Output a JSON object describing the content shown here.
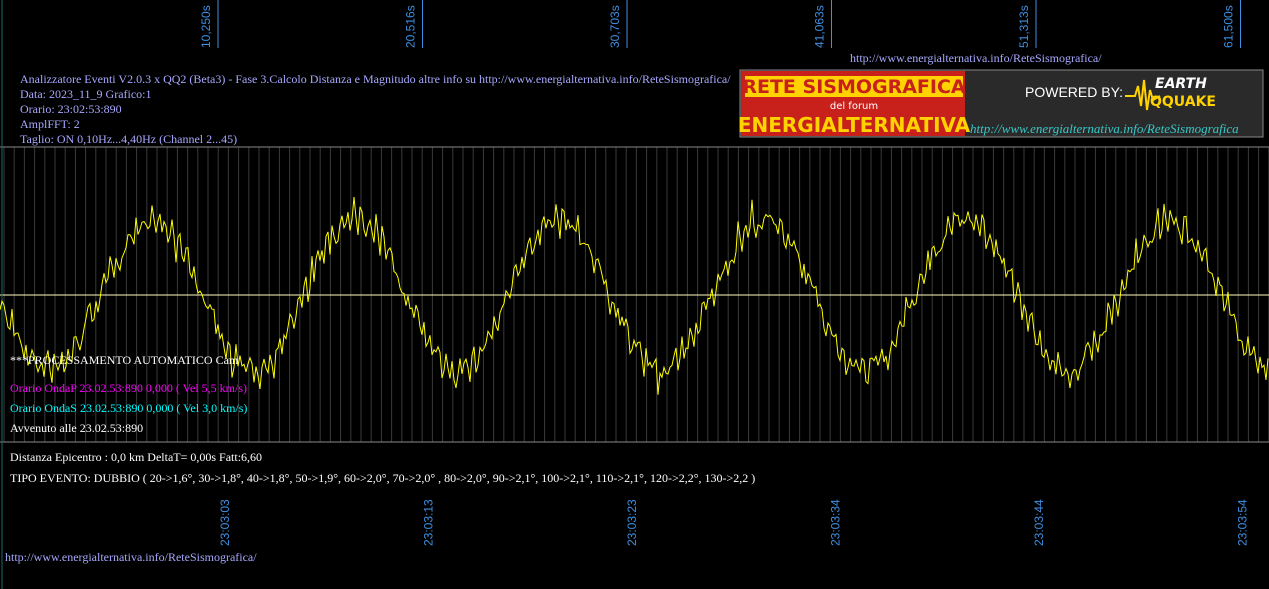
{
  "top_url": "http://www.energialternativa.info/ReteSismografica/",
  "info_lines": [
    "Analizzatore Eventi V2.0.3 x QQ2 (Beta3) - Fase 3.Calcolo Distanza e Magnitudo altre info su http://www.energialternativa.info/ReteSismografica/",
    "Data: 2023_11_9 Grafico:1",
    "Orario: 23:02:53:890",
    "AmplFFT: 2",
    "Taglio: ON 0,10Hz...4,40Hz       (Channel 2...45)"
  ],
  "top_ticks": [
    "10,250s",
    "20,516s",
    "30,703s",
    "41,063s",
    "51,313s",
    "61,500s"
  ],
  "bottom_ticks": [
    "23:03:03",
    "23:03:13",
    "23:03:23",
    "23:03:34",
    "23:03:44",
    "23:03:54"
  ],
  "logo": {
    "line1": "RETE SISMOGRAFICA",
    "line2": "del forum",
    "line3": "ENERGIALTERNATIVA",
    "powered": "POWERED BY:",
    "brand1": "EARTH",
    "brand2": "QQUAKE",
    "url": "http://www.energialternativa.info/ReteSismografica"
  },
  "processing": {
    "title": "***PROCESSAMENTO AUTOMATICO Cam",
    "onda_p": "Orario OndaP 23.02.53:890  0,000 ( Vel 5,5 km/s)",
    "onda_s": "Orario OndaS 23.02.53:890  0,000 ( Vel 3,0 km/s)",
    "event_time": "Avvenuto alle 23.02.53:890"
  },
  "distance": "Distanza Epicentro : 0,0 km DeltaT= 0,00s  Fatt:6,60",
  "event_type": "TIPO EVENTO: DUBBIO ( 20->1,6°, 30->1,8°, 40->1,8°, 50->1,9°, 60->2,0°, 70->2,0° , 80->2,0°, 90->2,1°, 100->2,1°, 110->2,1°, 120->2,2°, 130->2,2 )",
  "footer_url": "http://www.energialternativa.info/ReteSismografica/"
}
